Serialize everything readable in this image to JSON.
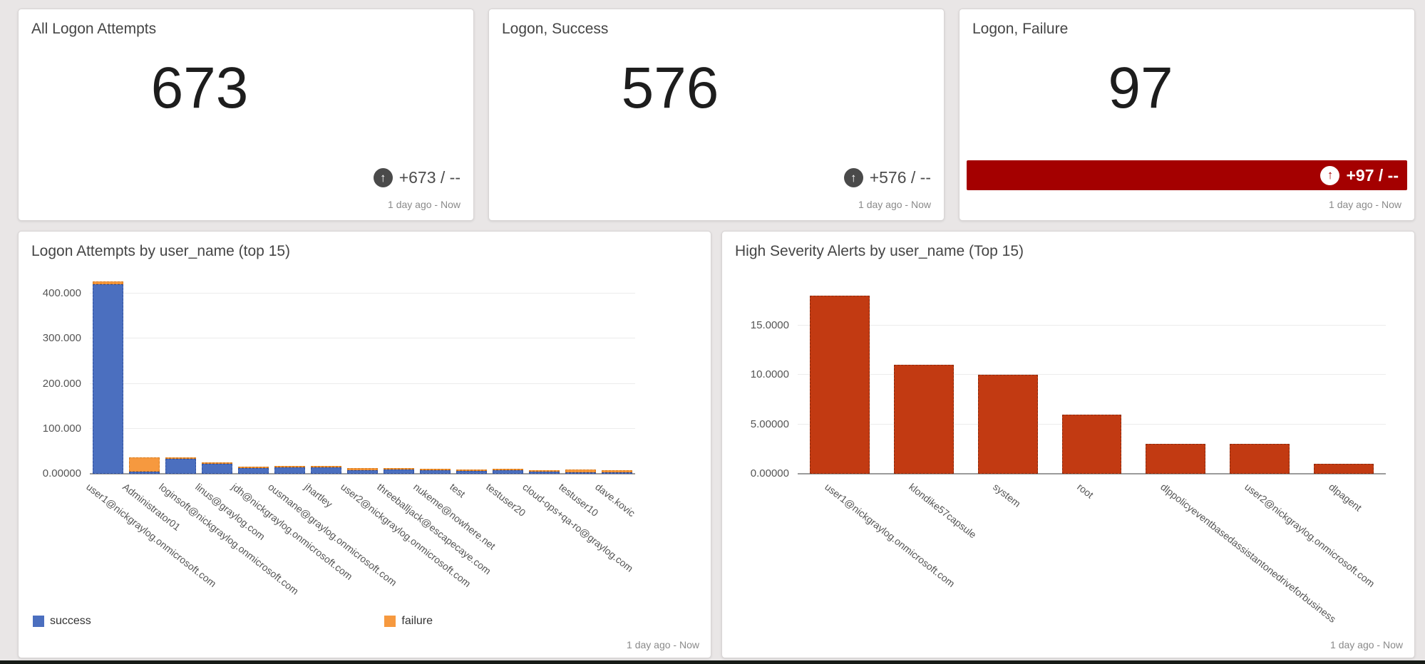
{
  "colors": {
    "success": "#4b6fbf",
    "success_border": "#30509f",
    "failure": "#f6993f",
    "failure_border": "#d87d1e",
    "alert": "#c23a12",
    "alert_border": "#8c2a0c",
    "highlight_bg": "#a40000",
    "trend_icon_bg": "#4a4a4a"
  },
  "cards": [
    {
      "title": "All Logon Attempts",
      "value": "673",
      "trend": "+673 / --",
      "trend_icon": "arrow-circle-up",
      "timerange": "1 day ago - Now",
      "highlight": false
    },
    {
      "title": "Logon, Success",
      "value": "576",
      "trend": "+576 / --",
      "trend_icon": "arrow-circle-up",
      "timerange": "1 day ago - Now",
      "highlight": false
    },
    {
      "title": "Logon, Failure",
      "value": "97",
      "trend": "+97 / --",
      "trend_icon": "arrow-circle-up",
      "timerange": "1 day ago - Now",
      "highlight": true
    }
  ],
  "chart_data": [
    {
      "type": "bar",
      "stacked": true,
      "title": "Logon Attempts by user_name (top 15)",
      "xlabel": "",
      "ylabel": "",
      "ylim": [
        0,
        430
      ],
      "grid": true,
      "legend_position": "bottom",
      "timerange": "1 day ago - Now",
      "categories": [
        "user1@nickgraylog.onmicrosoft.com",
        "Administrator01",
        "loginsoft@nickgraylog.onmicrosoft.com",
        "linus@graylog.com",
        "jdh@nickgraylog.onmicrosoft.com",
        "ousmane@graylog.onmicrosoft.com",
        "jhartley",
        "user2@nickgraylog.onmicrosoft.com",
        "threeballjack@escapecaye.com",
        "nukeme@nowhere.net",
        "test",
        "testuser20",
        "cloud-ops+qa-ro@graylog.com",
        "testuser10",
        "dave.kovic"
      ],
      "series": [
        {
          "name": "success",
          "color": "#4b6fbf",
          "border": "#30509f",
          "values": [
            420,
            4,
            33,
            22,
            13,
            15,
            14,
            8,
            10,
            8,
            7,
            8,
            4,
            1,
            1
          ]
        },
        {
          "name": "failure",
          "color": "#f6993f",
          "border": "#d87d1e",
          "values": [
            7,
            33,
            2,
            4,
            2,
            1,
            1,
            4,
            2,
            1,
            1,
            1,
            2,
            6,
            5
          ]
        }
      ],
      "yticks": [
        {
          "label": "400.000",
          "value": 400
        },
        {
          "label": "300.000",
          "value": 300
        },
        {
          "label": "200.000",
          "value": 200
        },
        {
          "label": "100.000",
          "value": 100
        },
        {
          "label": "0.00000",
          "value": 0
        }
      ]
    },
    {
      "type": "bar",
      "stacked": false,
      "title": "High Severity Alerts by user_name (Top 15)",
      "xlabel": "",
      "ylabel": "",
      "ylim": [
        0,
        18.6
      ],
      "grid": true,
      "legend_position": "none",
      "timerange": "1 day ago - Now",
      "categories": [
        "user1@nickgraylog.onmicrosoft.com",
        "klondike57capsule",
        "system",
        "root",
        "dlppolicyeventbasedassistantonedriveforbusiness",
        "user2@nickgraylog.onmicrosoft.com",
        "dlpagent"
      ],
      "values": [
        18,
        11,
        10,
        6,
        3,
        3,
        1
      ],
      "color": "#c23a12",
      "border": "#8c2a0c",
      "yticks": [
        {
          "label": "15.0000",
          "value": 15
        },
        {
          "label": "10.0000",
          "value": 10
        },
        {
          "label": "5.00000",
          "value": 5
        },
        {
          "label": "0.00000",
          "value": 0
        }
      ]
    }
  ]
}
